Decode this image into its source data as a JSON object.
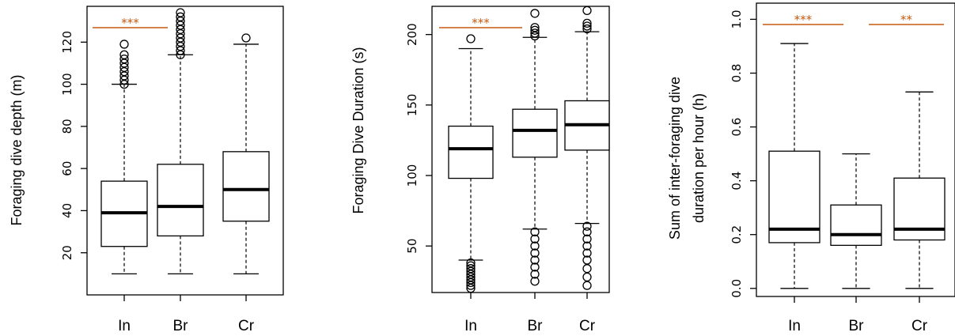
{
  "colors": {
    "significance": "#c55a11",
    "box": "#000000"
  },
  "chart_data": [
    {
      "type": "box",
      "ylabel": [
        "Foraging dive depth (m)"
      ],
      "categories": [
        "In",
        "Br",
        "Cr"
      ],
      "ylim": [
        0,
        137
      ],
      "yticks": [
        20,
        40,
        60,
        80,
        100,
        120
      ],
      "boxes": [
        {
          "category": "In",
          "min": 10,
          "q1": 23,
          "median": 39,
          "q3": 54,
          "max": 100,
          "outliers": [
            100,
            102,
            104,
            106,
            108,
            110,
            112,
            114,
            119
          ]
        },
        {
          "category": "Br",
          "min": 10,
          "q1": 28,
          "median": 42,
          "q3": 62,
          "max": 114,
          "outliers": [
            114,
            116,
            118,
            120,
            122,
            124,
            126,
            128,
            130,
            132,
            134
          ]
        },
        {
          "category": "Cr",
          "min": 10,
          "q1": 35,
          "median": 50,
          "q3": 68,
          "max": 119,
          "outliers": [
            122
          ]
        }
      ],
      "significance": [
        {
          "from": "In",
          "to": "Br",
          "label": "***"
        }
      ]
    },
    {
      "type": "box",
      "ylabel": [
        "Foraging Dive Duration (s)"
      ],
      "categories": [
        "In",
        "Br",
        "Cr"
      ],
      "ylim": [
        17,
        220
      ],
      "yticks": [
        50,
        100,
        150,
        200
      ],
      "boxes": [
        {
          "category": "In",
          "min": 40,
          "q1": 98,
          "median": 119,
          "q3": 135,
          "max": 190,
          "outliers": [
            20,
            22,
            24,
            26,
            28,
            30,
            32,
            34,
            36,
            38,
            197
          ]
        },
        {
          "category": "Br",
          "min": 62,
          "q1": 113,
          "median": 132,
          "q3": 147,
          "max": 198,
          "outliers": [
            25,
            30,
            35,
            40,
            45,
            50,
            55,
            60,
            199,
            201,
            203,
            205,
            215
          ]
        },
        {
          "category": "Cr",
          "min": 66,
          "q1": 118,
          "median": 136,
          "q3": 153,
          "max": 202,
          "outliers": [
            22,
            28,
            34,
            40,
            45,
            50,
            55,
            60,
            64,
            204,
            206,
            208,
            217
          ]
        }
      ],
      "significance": [
        {
          "from": "In",
          "to": "Br",
          "label": "***"
        }
      ]
    },
    {
      "type": "box",
      "ylabel": [
        "Sum of inter-foraging dive",
        "duration per hour (h)"
      ],
      "categories": [
        "In",
        "Br",
        "Cr"
      ],
      "ylim": [
        -0.03,
        1.06
      ],
      "yticks": [
        0.0,
        0.2,
        0.4,
        0.6,
        0.8,
        1.0
      ],
      "ytick_labels": [
        "0.0",
        "0.2",
        "0.4",
        "0.6",
        "0.8",
        "1.0"
      ],
      "boxes": [
        {
          "category": "In",
          "min": 0.0,
          "q1": 0.17,
          "median": 0.22,
          "q3": 0.51,
          "max": 0.91,
          "outliers": []
        },
        {
          "category": "Br",
          "min": 0.0,
          "q1": 0.16,
          "median": 0.2,
          "q3": 0.31,
          "max": 0.5,
          "outliers": []
        },
        {
          "category": "Cr",
          "min": 0.0,
          "q1": 0.18,
          "median": 0.22,
          "q3": 0.41,
          "max": 0.73,
          "outliers": []
        }
      ],
      "significance": [
        {
          "from": "In",
          "to": "Br",
          "label": "***"
        },
        {
          "from": "Br",
          "to": "Cr",
          "label": "**"
        }
      ]
    }
  ]
}
